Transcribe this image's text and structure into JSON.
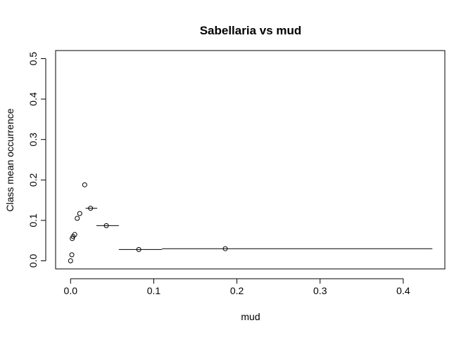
{
  "chart_data": {
    "type": "scatter",
    "title": "Sabellaria vs mud",
    "xlabel": "mud",
    "ylabel": "Class mean occurrence",
    "xlim": [
      -0.018,
      0.45
    ],
    "ylim": [
      -0.02,
      0.52
    ],
    "xticks": [
      0.0,
      0.1,
      0.2,
      0.3,
      0.4
    ],
    "xtick_labels": [
      "0.0",
      "0.1",
      "0.2",
      "0.3",
      "0.4"
    ],
    "yticks": [
      0.0,
      0.1,
      0.2,
      0.3,
      0.4,
      0.5
    ],
    "ytick_labels": [
      "0.0",
      "0.1",
      "0.2",
      "0.3",
      "0.4",
      "0.5"
    ],
    "grid": false,
    "points": [
      {
        "x": 0.0,
        "y": 0.0
      },
      {
        "x": 0.0015,
        "y": 0.015
      },
      {
        "x": 0.002,
        "y": 0.055
      },
      {
        "x": 0.003,
        "y": 0.06
      },
      {
        "x": 0.005,
        "y": 0.065
      },
      {
        "x": 0.008,
        "y": 0.105
      },
      {
        "x": 0.011,
        "y": 0.117
      },
      {
        "x": 0.017,
        "y": 0.188
      },
      {
        "x": 0.024,
        "y": 0.13,
        "x_range": [
          0.018,
          0.032
        ]
      },
      {
        "x": 0.043,
        "y": 0.087,
        "x_range": [
          0.031,
          0.058
        ]
      },
      {
        "x": 0.082,
        "y": 0.028,
        "x_range": [
          0.058,
          0.11
        ]
      },
      {
        "x": 0.186,
        "y": 0.03,
        "x_range": [
          0.11,
          0.435
        ]
      }
    ]
  }
}
